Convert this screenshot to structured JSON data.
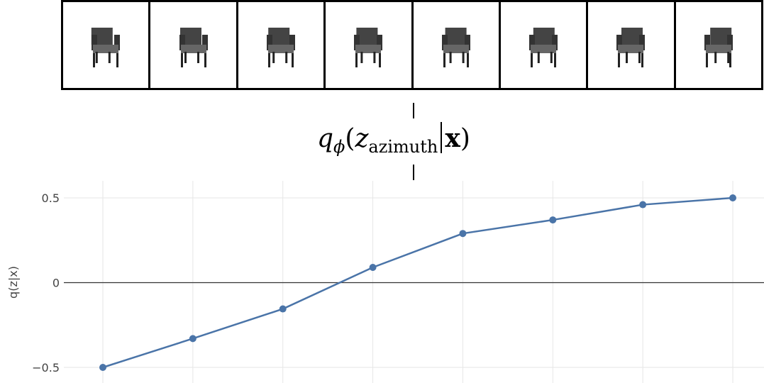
{
  "thumbnails": [
    {
      "icon": "chair-icon",
      "view": 1
    },
    {
      "icon": "chair-icon",
      "view": 2
    },
    {
      "icon": "chair-icon",
      "view": 3
    },
    {
      "icon": "chair-icon",
      "view": 4
    },
    {
      "icon": "chair-icon",
      "view": 5
    },
    {
      "icon": "chair-icon",
      "view": 6
    },
    {
      "icon": "chair-icon",
      "view": 7
    },
    {
      "icon": "chair-icon",
      "view": 8
    }
  ],
  "formula": {
    "q": "q",
    "phi": "ϕ",
    "open": "(",
    "z": "z",
    "sub": "azimuth",
    "x": "x",
    "close": ")"
  },
  "chart_data": {
    "type": "line",
    "ylabel": "q(z|x)",
    "x": [
      1,
      2,
      3,
      4,
      5,
      6,
      7,
      8
    ],
    "series": [
      {
        "values": [
          -0.5,
          -0.33,
          -0.155,
          0.09,
          0.29,
          0.37,
          0.46,
          0.5
        ],
        "color": "#4a74a8"
      }
    ],
    "yticks": [
      {
        "value": 0.5,
        "label": "0.5"
      },
      {
        "value": 0,
        "label": "0"
      },
      {
        "value": -0.5,
        "label": "−0.5"
      }
    ],
    "ylim": [
      -0.58,
      0.58
    ],
    "grid": true,
    "zero_line": true
  }
}
